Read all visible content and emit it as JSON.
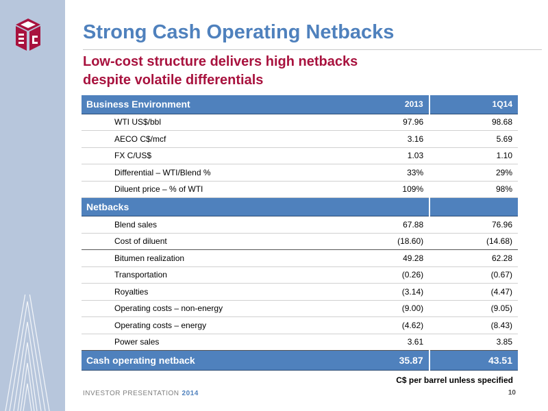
{
  "header": {
    "title": "Strong Cash Operating Netbacks",
    "subtitle_line1": "Low-cost structure delivers high netbacks",
    "subtitle_line2": "despite volatile differentials"
  },
  "table": {
    "section1": {
      "label": "Business Environment",
      "col1": "2013",
      "col2": "1Q14",
      "rows": [
        {
          "label": "WTI US$/bbl",
          "v2013": "97.96",
          "v1q14": "98.68"
        },
        {
          "label": "AECO C$/mcf",
          "v2013": "3.16",
          "v1q14": "5.69"
        },
        {
          "label": "FX C/US$",
          "v2013": "1.03",
          "v1q14": "1.10"
        },
        {
          "label": "Differential – WTI/Blend %",
          "v2013": "33%",
          "v1q14": "29%"
        },
        {
          "label": "Diluent price – % of WTI",
          "v2013": "109%",
          "v1q14": "98%"
        }
      ]
    },
    "section2": {
      "label": "Netbacks",
      "rows": [
        {
          "label": "Blend sales",
          "v2013": "67.88",
          "v1q14": "76.96"
        },
        {
          "label": "Cost of diluent",
          "v2013": "(18.60)",
          "v1q14": "(14.68)"
        },
        {
          "label": "Bitumen realization",
          "v2013": "49.28",
          "v1q14": "62.28"
        },
        {
          "label": "Transportation",
          "v2013": "(0.26)",
          "v1q14": "(0.67)"
        },
        {
          "label": "Royalties",
          "v2013": "(3.14)",
          "v1q14": "(4.47)"
        },
        {
          "label": "Operating costs – non-energy",
          "v2013": "(9.00)",
          "v1q14": "(9.05)"
        },
        {
          "label": "Operating costs – energy",
          "v2013": "(4.62)",
          "v1q14": "(8.43)"
        },
        {
          "label": "Power sales",
          "v2013": "3.61",
          "v1q14": "3.85"
        }
      ]
    },
    "total": {
      "label": "Cash operating netback",
      "v2013": "35.87",
      "v1q14": "43.51"
    }
  },
  "note": "C$ per barrel unless specified",
  "footer": {
    "presentation": "INVESTOR PRESENTATION",
    "year": "2014",
    "page": "10"
  },
  "colors": {
    "accent_blue": "#4f81bd",
    "subtitle_red": "#a8123e",
    "sidebar": "#b7c6dc",
    "logo_red": "#a8123e"
  }
}
